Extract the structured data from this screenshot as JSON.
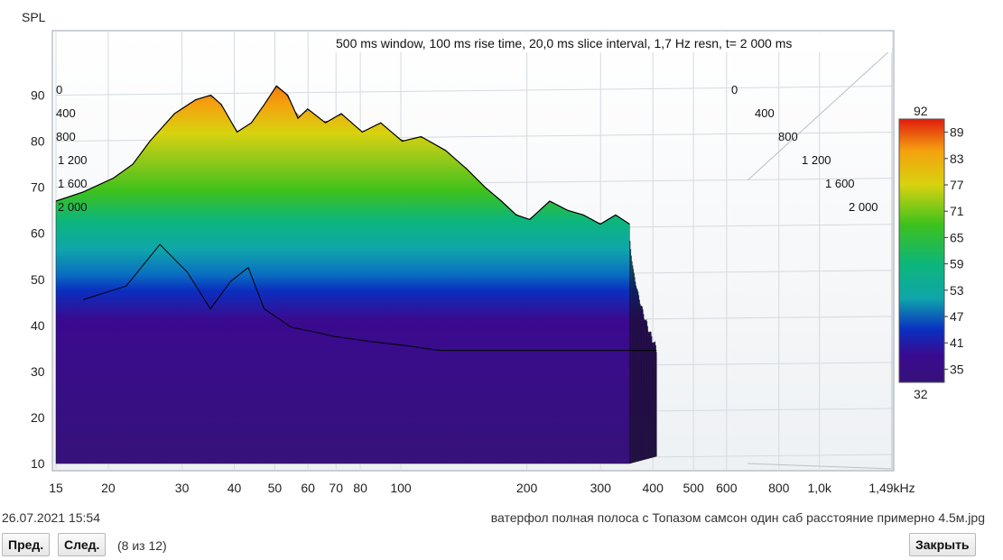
{
  "chart_data": {
    "type": "area",
    "ylabel": "SPL",
    "xlabel": "",
    "annotation": "500 ms window, 100 ms rise time, 20,0 ms slice interval, 1,7 Hz resn, t= 2 000 ms",
    "x_scale": "log",
    "xlim": [
      15,
      1490
    ],
    "ylim": [
      10,
      95
    ],
    "x_ticks": [
      15,
      20,
      30,
      40,
      50,
      60,
      70,
      80,
      100,
      200,
      300,
      400,
      500,
      600,
      800,
      1000,
      1490
    ],
    "x_tick_labels": [
      "15",
      "20",
      "30",
      "40",
      "50",
      "60",
      "70",
      "80",
      "100",
      "200",
      "300",
      "400",
      "500",
      "600",
      "800",
      "1,0k",
      "1,49kHz"
    ],
    "y_ticks": [
      10,
      20,
      30,
      40,
      50,
      60,
      70,
      80,
      90
    ],
    "time_axis_labels": [
      "0",
      "400",
      "800",
      "1 200",
      "1 600",
      "2 000"
    ],
    "colorbar": {
      "min": 32,
      "max": 92,
      "ticks": [
        89,
        83,
        77,
        71,
        65,
        59,
        53,
        47,
        41,
        35
      ],
      "colors": [
        "#e11b0d",
        "#f5a10f",
        "#d8d20f",
        "#3ec11c",
        "#0db67a",
        "#0fa6aa",
        "#0a2fc0",
        "#3a0a8f",
        "#36127a"
      ]
    },
    "series": [
      {
        "t_ms": 0,
        "x": [
          15,
          18,
          22,
          25,
          28,
          33,
          38,
          42,
          45,
          50,
          55,
          60,
          65,
          70,
          75,
          80,
          90,
          100,
          115,
          130,
          150,
          170,
          200,
          230,
          260,
          290,
          320,
          350,
          400,
          450,
          500,
          560,
          620,
          680
        ],
        "y": [
          67,
          69,
          72,
          75,
          80,
          86,
          89,
          90,
          88,
          82,
          84,
          88,
          92,
          90,
          85,
          87,
          84,
          86,
          82,
          84,
          80,
          81,
          78,
          74,
          70,
          67,
          64,
          63,
          67,
          65,
          64,
          62,
          64,
          62
        ]
      },
      {
        "t_ms": 400,
        "x": [
          15,
          20,
          25,
          30,
          35,
          40,
          45,
          50,
          60,
          70,
          80,
          100,
          130,
          160,
          200,
          250,
          300,
          400,
          500,
          600,
          680
        ],
        "y": [
          44,
          47,
          56,
          50,
          42,
          48,
          51,
          42,
          38,
          37,
          36,
          35,
          34,
          33,
          33,
          33,
          33,
          33,
          33,
          33,
          33
        ]
      }
    ]
  },
  "footer": {
    "date": "26.07.2021 15:54",
    "caption": "ватерфол полная полоса с Топазом самсон один саб расстояние примерно 4.5м.jpg",
    "prev_label": "Пред.",
    "next_label": "След.",
    "counter": "(8 из 12)",
    "close_label": "Закрыть"
  }
}
